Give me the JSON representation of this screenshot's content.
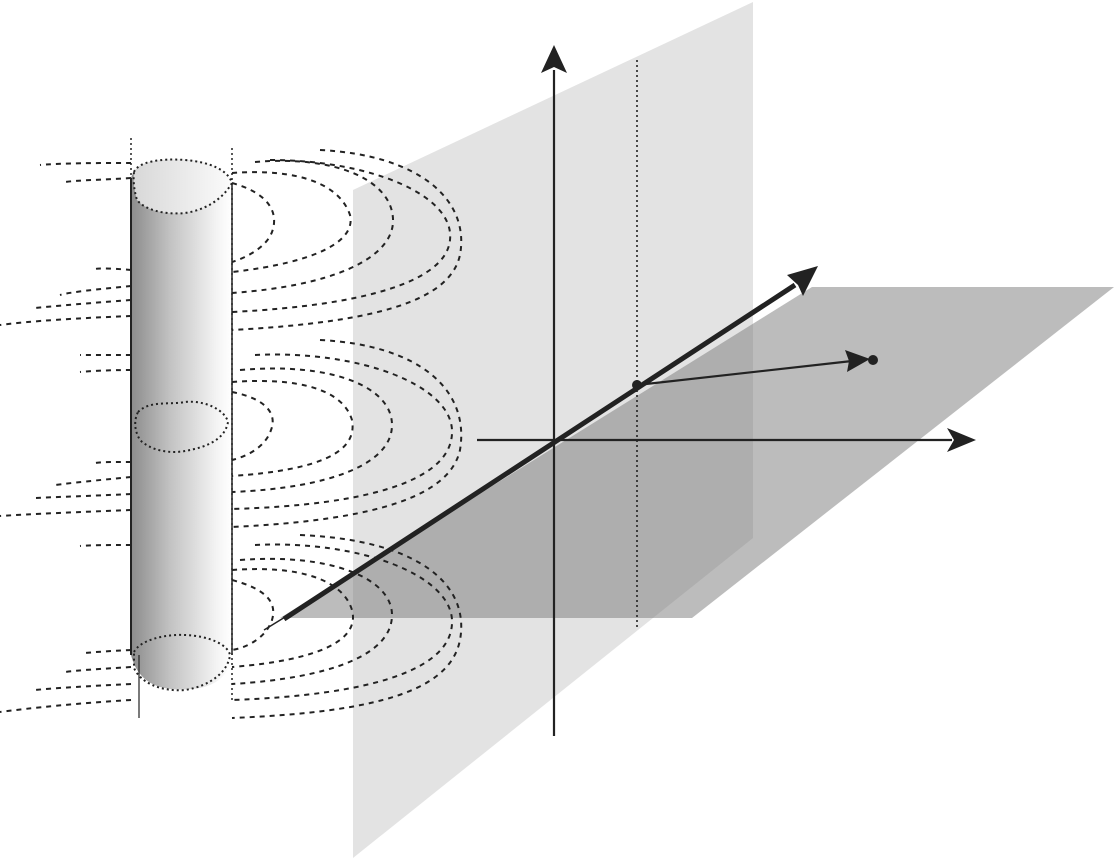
{
  "diagram": {
    "colors": {
      "background": "#ffffff",
      "vertical_plane": "#e3e3e3",
      "horizontal_plane": "#b2b2b2",
      "line": "#222222",
      "cylinder_dark": "#8c8c8c",
      "cylinder_light": "#f4f4f4"
    },
    "components": [
      "vertical-plane",
      "horizontal-plane",
      "vertical-axis-arrow",
      "horizontal-axis-arrow",
      "depth-axis-arrow",
      "point-vector-arrow",
      "dotted-projection-line",
      "cylinder",
      "dashed-field-lines"
    ]
  }
}
